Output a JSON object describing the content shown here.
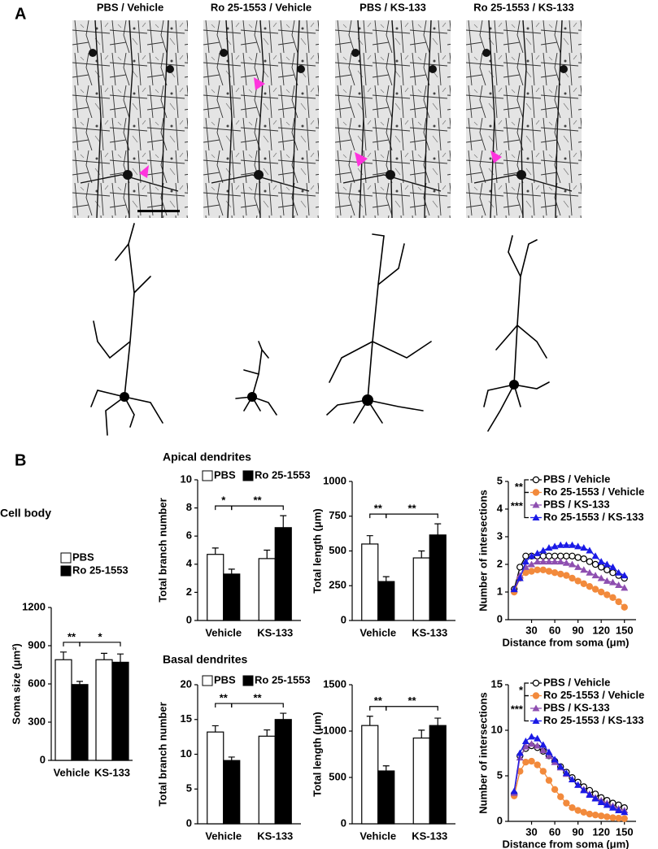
{
  "panel_labels": [
    "A",
    "B"
  ],
  "image_titles": [
    "PBS / Vehicle",
    "Ro 25-1553 / Vehicle",
    "PBS / KS-133",
    "Ro 25-1553 / KS-133"
  ],
  "section_titles": [
    "Cell body",
    "Apical dendrites",
    "Basal dendrites"
  ],
  "chart_data": [
    {
      "type": "bar",
      "ylabel": "Soma size (μm²)",
      "categories": [
        "Vehicle",
        "KS-133"
      ],
      "series": [
        {
          "name": "PBS",
          "color": "#ffffff",
          "values": [
            790,
            790
          ],
          "errors": [
            60,
            50
          ]
        },
        {
          "name": "Ro 25-1553",
          "color": "#000000",
          "values": [
            595,
            770
          ],
          "errors": [
            25,
            65
          ]
        }
      ],
      "ylim": [
        0,
        1200
      ],
      "yticks": [
        0,
        300,
        600,
        900,
        1200
      ],
      "legend": true,
      "annotations": [
        "**",
        "*"
      ]
    },
    {
      "type": "bar",
      "ylabel": "Total branch number",
      "categories": [
        "Vehicle",
        "KS-133"
      ],
      "series": [
        {
          "name": "PBS",
          "color": "#ffffff",
          "values": [
            4.7,
            4.4
          ],
          "errors": [
            0.45,
            0.6
          ]
        },
        {
          "name": "Ro 25-1553",
          "color": "#000000",
          "values": [
            3.3,
            6.6
          ],
          "errors": [
            0.35,
            0.85
          ]
        }
      ],
      "ylim": [
        0,
        10
      ],
      "yticks": [
        0,
        2,
        4,
        6,
        8,
        10
      ],
      "legend": true,
      "annotations": [
        "*",
        "**"
      ]
    },
    {
      "type": "bar",
      "ylabel": "Total length (μm)",
      "categories": [
        "Vehicle",
        "KS-133"
      ],
      "series": [
        {
          "name": "PBS",
          "color": "#ffffff",
          "values": [
            550,
            450
          ],
          "errors": [
            60,
            50
          ]
        },
        {
          "name": "Ro 25-1553",
          "color": "#000000",
          "values": [
            280,
            615
          ],
          "errors": [
            35,
            80
          ]
        }
      ],
      "ylim": [
        0,
        1000
      ],
      "yticks": [
        0,
        250,
        500,
        750,
        1000
      ],
      "legend": false,
      "annotations": [
        "**",
        "**"
      ]
    },
    {
      "type": "line",
      "xlabel": "Distance from soma (μm)",
      "ylabel": "Number of intersections",
      "x": [
        7.5,
        15,
        22.5,
        30,
        37.5,
        45,
        52.5,
        60,
        67.5,
        75,
        82.5,
        90,
        97.5,
        105,
        112.5,
        120,
        127.5,
        135,
        142.5,
        150
      ],
      "series": [
        {
          "name": "PBS / Vehicle",
          "color": "#000000",
          "marker": "circle",
          "marker_fill": "#ffffff",
          "values": [
            1.1,
            1.9,
            2.3,
            2.3,
            2.3,
            2.3,
            2.3,
            2.3,
            2.3,
            2.3,
            2.3,
            2.25,
            2.2,
            2.1,
            2.0,
            1.9,
            1.8,
            1.7,
            1.6,
            1.5
          ]
        },
        {
          "name": "Ro 25-1553 / Vehicle",
          "color": "#f28a3c",
          "marker": "circle",
          "marker_fill": "#f28a3c",
          "values": [
            1.0,
            1.5,
            1.7,
            1.75,
            1.8,
            1.8,
            1.75,
            1.7,
            1.65,
            1.6,
            1.5,
            1.4,
            1.3,
            1.2,
            1.1,
            1.0,
            0.9,
            0.8,
            0.65,
            0.45
          ]
        },
        {
          "name": "PBS / KS-133",
          "color": "#8e4fb0",
          "marker": "triangle",
          "marker_fill": "#8e4fb0",
          "values": [
            1.1,
            1.6,
            1.9,
            2.0,
            2.1,
            2.1,
            2.1,
            2.1,
            2.1,
            2.05,
            2.0,
            1.9,
            1.8,
            1.7,
            1.6,
            1.5,
            1.4,
            1.35,
            1.25,
            1.15
          ]
        },
        {
          "name": "Ro 25-1553 / KS-133",
          "color": "#1a1ae6",
          "marker": "triangle",
          "marker_fill": "#1a1ae6",
          "values": [
            1.1,
            1.5,
            2.1,
            2.3,
            2.4,
            2.5,
            2.6,
            2.65,
            2.7,
            2.7,
            2.7,
            2.65,
            2.6,
            2.5,
            2.3,
            2.1,
            2.0,
            1.9,
            1.7,
            1.6
          ]
        }
      ],
      "xlim": [
        0,
        165
      ],
      "xticks": [
        30,
        60,
        90,
        120,
        150
      ],
      "ylim": [
        0,
        5
      ],
      "yticks": [
        0,
        1,
        2,
        3,
        4,
        5
      ],
      "annotations": [
        "**",
        "***"
      ]
    },
    {
      "type": "bar",
      "ylabel": "Total branch number",
      "categories": [
        "Vehicle",
        "KS-133"
      ],
      "series": [
        {
          "name": "PBS",
          "color": "#ffffff",
          "values": [
            13.2,
            12.6
          ],
          "errors": [
            0.9,
            0.9
          ]
        },
        {
          "name": "Ro 25-1553",
          "color": "#000000",
          "values": [
            9.1,
            15.0
          ],
          "errors": [
            0.5,
            0.9
          ]
        }
      ],
      "ylim": [
        0,
        20
      ],
      "yticks": [
        0,
        5,
        10,
        15,
        20
      ],
      "legend": true,
      "annotations": [
        "**",
        "**"
      ]
    },
    {
      "type": "bar",
      "ylabel": "Total length (μm)",
      "categories": [
        "Vehicle",
        "KS-133"
      ],
      "series": [
        {
          "name": "PBS",
          "color": "#ffffff",
          "values": [
            1060,
            925
          ],
          "errors": [
            100,
            85
          ]
        },
        {
          "name": "Ro 25-1553",
          "color": "#000000",
          "values": [
            570,
            1060
          ],
          "errors": [
            55,
            80
          ]
        }
      ],
      "ylim": [
        0,
        1500
      ],
      "yticks": [
        0,
        500,
        1000,
        1500
      ],
      "legend": false,
      "annotations": [
        "**",
        "**"
      ]
    },
    {
      "type": "line",
      "xlabel": "Distance from soma (μm)",
      "ylabel": "Number of intersections",
      "x": [
        7.5,
        15,
        22.5,
        30,
        37.5,
        45,
        52.5,
        60,
        67.5,
        75,
        82.5,
        90,
        97.5,
        105,
        112.5,
        120,
        127.5,
        135,
        142.5,
        150
      ],
      "series": [
        {
          "name": "PBS / Vehicle",
          "color": "#000000",
          "marker": "circle",
          "marker_fill": "#ffffff",
          "values": [
            3.0,
            7.2,
            8.0,
            8.3,
            8.1,
            7.7,
            7.2,
            6.6,
            6.0,
            5.4,
            4.8,
            4.3,
            3.8,
            3.4,
            3.0,
            2.6,
            2.3,
            2.0,
            1.8,
            1.5
          ]
        },
        {
          "name": "Ro 25-1553 / Vehicle",
          "color": "#f28a3c",
          "marker": "circle",
          "marker_fill": "#f28a3c",
          "values": [
            2.8,
            5.5,
            6.5,
            6.6,
            6.2,
            5.5,
            4.5,
            3.5,
            2.7,
            2.0,
            1.5,
            1.2,
            1.0,
            0.8,
            0.7,
            0.6,
            0.5,
            0.4,
            0.35,
            0.3
          ]
        },
        {
          "name": "PBS / KS-133",
          "color": "#8e4fb0",
          "marker": "triangle",
          "marker_fill": "#8e4fb0",
          "values": [
            3.1,
            7.0,
            8.2,
            8.5,
            8.3,
            7.8,
            7.2,
            6.5,
            5.9,
            5.2,
            4.6,
            4.0,
            3.5,
            3.0,
            2.6,
            2.3,
            2.0,
            1.7,
            1.4,
            1.2
          ]
        },
        {
          "name": "Ro 25-1553 / KS-133",
          "color": "#1a1ae6",
          "marker": "triangle",
          "marker_fill": "#1a1ae6",
          "values": [
            3.3,
            7.5,
            8.8,
            9.3,
            9.1,
            8.4,
            7.6,
            6.8,
            6.0,
            5.3,
            4.6,
            4.0,
            3.4,
            2.9,
            2.5,
            2.1,
            1.8,
            1.5,
            1.2,
            1.0
          ]
        }
      ],
      "xlim": [
        0,
        165
      ],
      "xticks": [
        30,
        60,
        90,
        120,
        150
      ],
      "ylim": [
        0,
        15
      ],
      "yticks": [
        0,
        5,
        10,
        15
      ],
      "annotations": [
        "*",
        "***"
      ]
    }
  ]
}
